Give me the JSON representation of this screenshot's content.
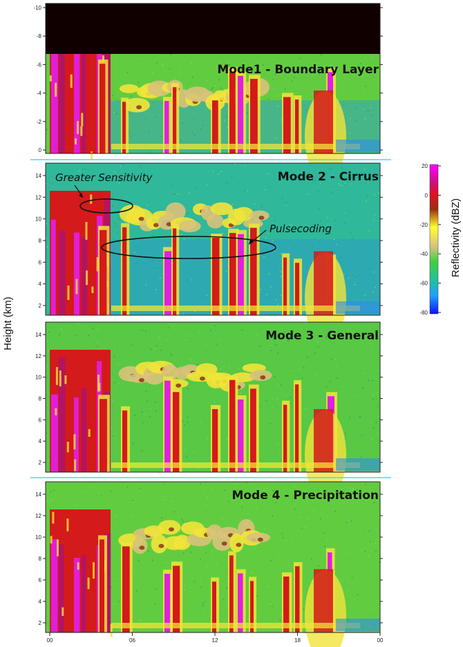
{
  "chart_data": {
    "type": "heatmap",
    "ylabel": "Height (km)",
    "colorbar": {
      "label": "Reflectivity (dBZ)",
      "ticks": [
        "20",
        "0",
        "-20",
        "-40",
        "-60",
        "-80"
      ],
      "range": [
        -80,
        20
      ]
    },
    "x_ticks": [
      "00",
      "06",
      "12",
      "18",
      "00"
    ],
    "panels": [
      {
        "title": "Mode1 - Boundary Layer",
        "y_ticks": [
          "-10",
          "-8",
          "-6",
          "-4",
          "-2",
          "0"
        ],
        "annotations": []
      },
      {
        "title": "Mode 2 - Cirrus",
        "y_ticks": [
          "14",
          "12",
          "10",
          "8",
          "6",
          "4",
          "2"
        ],
        "annotations": [
          "Greater Sensitivity",
          "Pulsecoding"
        ]
      },
      {
        "title": "Mode 3 - General",
        "y_ticks": [
          "14",
          "12",
          "10",
          "8",
          "6",
          "4",
          "2"
        ],
        "annotations": []
      },
      {
        "title": "Mode 4 - Precipitation",
        "y_ticks": [
          "14",
          "12",
          "10",
          "8",
          "6",
          "4",
          "2"
        ],
        "annotations": []
      }
    ]
  }
}
